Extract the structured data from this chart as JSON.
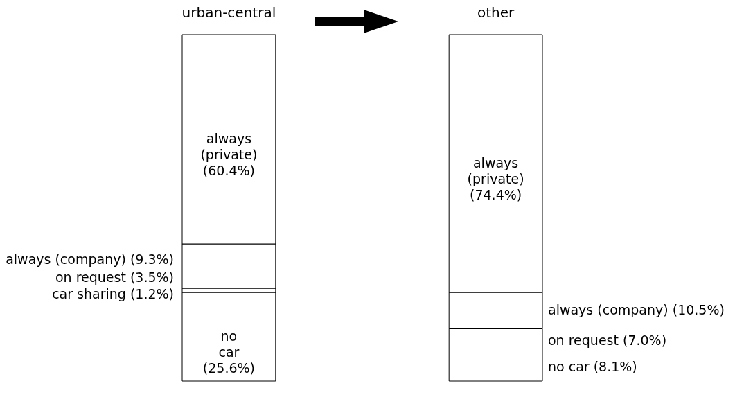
{
  "chart_data": {
    "type": "bar",
    "stacked": true,
    "categories": [
      "urban-central",
      "other"
    ],
    "series": [
      {
        "name": "no car",
        "color": "#ffffff",
        "values": [
          25.6,
          8.1
        ],
        "value_labels": [
          "(25.6%)",
          "(8.1%)"
        ]
      },
      {
        "name": "car sharing",
        "color": "#ffffff",
        "values": [
          1.2,
          null
        ],
        "value_labels": [
          "(1.2%)",
          null
        ]
      },
      {
        "name": "on request",
        "color": "#ffffff",
        "values": [
          3.5,
          7.0
        ],
        "value_labels": [
          "(3.5%)",
          "(7.0%)"
        ]
      },
      {
        "name": "always (company)",
        "color": "#ffffff",
        "values": [
          9.3,
          10.5
        ],
        "value_labels": [
          "(9.3%)",
          "(10.5%)"
        ]
      },
      {
        "name": "always (private)",
        "color": "#ffffff",
        "values": [
          60.4,
          74.4
        ],
        "value_labels": [
          "(60.4%)",
          "(74.4%)"
        ]
      }
    ]
  }
}
